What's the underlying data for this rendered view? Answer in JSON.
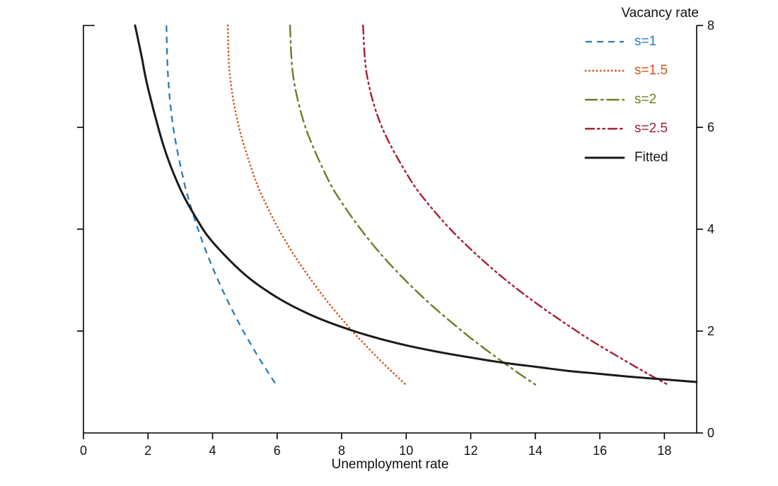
{
  "chart_data": {
    "type": "line",
    "title": "",
    "xlabel": "Unemployment rate",
    "ylabel": "Vacancy rate",
    "xlim": [
      0,
      19
    ],
    "ylim": [
      0,
      8
    ],
    "x_ticks": [
      0,
      2,
      4,
      6,
      8,
      10,
      12,
      14,
      16,
      18
    ],
    "y_ticks": [
      0,
      2,
      4,
      6,
      8
    ],
    "grid": false,
    "legend_position": "top-right",
    "axis_color": "#000000",
    "series": [
      {
        "name": "s=1",
        "color": "#2b79b8",
        "dash": "9 7",
        "width": 2.3,
        "cap": "butt",
        "points": [
          [
            2.57,
            8
          ],
          [
            2.62,
            7
          ],
          [
            2.78,
            6
          ],
          [
            3.09,
            5
          ],
          [
            3.3,
            4.5
          ],
          [
            3.55,
            4
          ],
          [
            3.84,
            3.5
          ],
          [
            4.17,
            3
          ],
          [
            4.54,
            2.5
          ],
          [
            4.95,
            2
          ],
          [
            5.18,
            1.75
          ],
          [
            5.41,
            1.5
          ],
          [
            5.66,
            1.25
          ],
          [
            5.81,
            1.1
          ],
          [
            5.97,
            0.95
          ]
        ]
      },
      {
        "name": "s=1.5",
        "color": "#d2531a",
        "dash": "0.1 5.2",
        "width": 2.7,
        "cap": "round",
        "points": [
          [
            4.47,
            8
          ],
          [
            4.54,
            7
          ],
          [
            4.82,
            6
          ],
          [
            5.31,
            5
          ],
          [
            5.65,
            4.5
          ],
          [
            6.05,
            4
          ],
          [
            6.52,
            3.5
          ],
          [
            7.06,
            3
          ],
          [
            7.66,
            2.5
          ],
          [
            8.33,
            2
          ],
          [
            8.7,
            1.75
          ],
          [
            9.08,
            1.5
          ],
          [
            9.48,
            1.25
          ],
          [
            9.73,
            1.1
          ],
          [
            9.98,
            0.95
          ]
        ]
      },
      {
        "name": "s=2",
        "color": "#6b7d22",
        "dash": "16 6 2.5 6",
        "width": 2.4,
        "cap": "round",
        "points": [
          [
            6.4,
            8
          ],
          [
            6.5,
            7
          ],
          [
            6.88,
            6
          ],
          [
            7.56,
            5
          ],
          [
            8.03,
            4.5
          ],
          [
            8.59,
            4
          ],
          [
            9.23,
            3.5
          ],
          [
            9.97,
            3
          ],
          [
            10.8,
            2.5
          ],
          [
            11.73,
            2
          ],
          [
            12.23,
            1.75
          ],
          [
            12.76,
            1.5
          ],
          [
            13.31,
            1.25
          ],
          [
            13.65,
            1.1
          ],
          [
            14.0,
            0.95
          ]
        ]
      },
      {
        "name": "s=2.5",
        "color": "#a32035",
        "dash": "12 5 2.5 5 2.5 5",
        "width": 2.4,
        "cap": "round",
        "points": [
          [
            8.66,
            8
          ],
          [
            8.79,
            7
          ],
          [
            9.25,
            6
          ],
          [
            10.1,
            5
          ],
          [
            10.68,
            4.5
          ],
          [
            11.37,
            4
          ],
          [
            12.18,
            3.5
          ],
          [
            13.09,
            3
          ],
          [
            14.13,
            2.5
          ],
          [
            15.28,
            2
          ],
          [
            15.9,
            1.75
          ],
          [
            16.56,
            1.5
          ],
          [
            17.24,
            1.25
          ],
          [
            17.66,
            1.1
          ],
          [
            18.1,
            0.95
          ]
        ]
      },
      {
        "name": "Fitted",
        "color": "#1a1a1a",
        "dash": "",
        "width": 3,
        "cap": "round",
        "points": [
          [
            1.6,
            8
          ],
          [
            1.8,
            7.4
          ],
          [
            2.0,
            6.77
          ],
          [
            2.5,
            5.6
          ],
          [
            3.0,
            4.79
          ],
          [
            3.5,
            4.21
          ],
          [
            4.0,
            3.75
          ],
          [
            5.0,
            3.11
          ],
          [
            6.0,
            2.66
          ],
          [
            7.0,
            2.33
          ],
          [
            8.0,
            2.08
          ],
          [
            9.0,
            1.88
          ],
          [
            10.0,
            1.72
          ],
          [
            11.0,
            1.59
          ],
          [
            12.0,
            1.48
          ],
          [
            13.0,
            1.38
          ],
          [
            14.0,
            1.3
          ],
          [
            15.0,
            1.22
          ],
          [
            16.0,
            1.16
          ],
          [
            17.0,
            1.1
          ],
          [
            18.0,
            1.05
          ],
          [
            19.0,
            1.0
          ]
        ]
      }
    ]
  }
}
